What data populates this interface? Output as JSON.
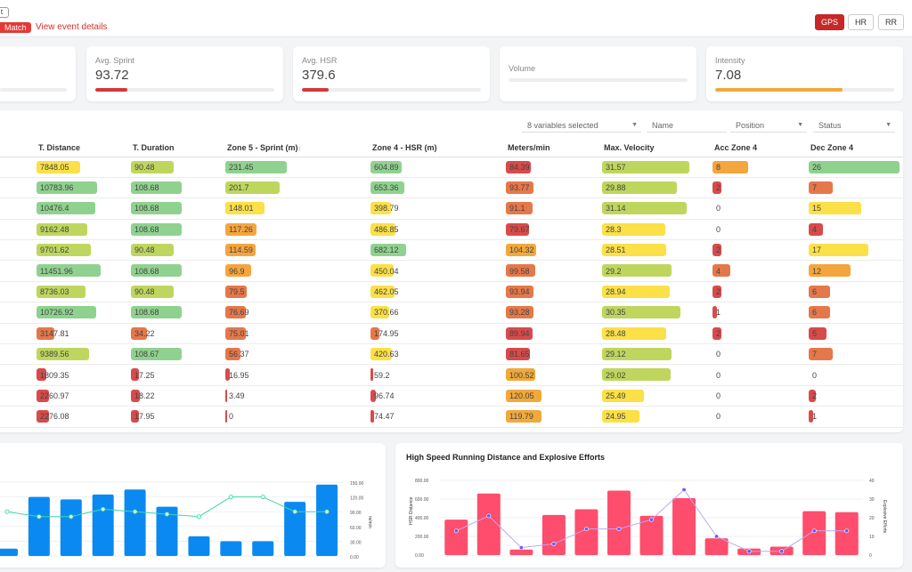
{
  "header": {
    "back_label": "t",
    "match_badge": "Match",
    "event_link": "View event details",
    "modes": [
      {
        "label": "GPS",
        "active": true
      },
      {
        "label": "HR",
        "active": false
      },
      {
        "label": "RR",
        "active": false
      }
    ]
  },
  "stats": [
    {
      "label": "",
      "value": "",
      "fill": 0.0,
      "color": "#d13a3a"
    },
    {
      "label": "Avg. Sprint",
      "value": "93.72",
      "fill": 0.18,
      "color": "#d13a3a"
    },
    {
      "label": "Avg. HSR",
      "value": "379.6",
      "fill": 0.15,
      "color": "#d13a3a"
    },
    {
      "label": "Volume",
      "value": "",
      "fill": 0.0,
      "color": "#d13a3a"
    },
    {
      "label": "Intensity",
      "value": "7.08",
      "fill": 0.71,
      "color": "#f0a93b"
    }
  ],
  "filters": {
    "variables": "8 variables selected",
    "name_placeholder": "Name",
    "position_placeholder": "Position",
    "status_placeholder": "Status"
  },
  "table": {
    "columns": [
      "",
      "T. Distance",
      "T. Duration",
      "Zone 5 - Sprint (m)",
      "Zone 4 - HSR (m)",
      "Meters/min",
      "Max. Velocity",
      "Acc Zone 4",
      "Dec Zone 4"
    ],
    "rows": [
      [
        "7848.05",
        "90.48",
        "231.45",
        "604.89",
        "84.39",
        "31.57",
        "8",
        "26"
      ],
      [
        "10783.96",
        "108.68",
        "201.7",
        "653.36",
        "93.77",
        "29.88",
        "2",
        "7"
      ],
      [
        "10476.4",
        "108.68",
        "148.01",
        "398.79",
        "91.1",
        "31.14",
        "0",
        "15"
      ],
      [
        "9162.48",
        "108.68",
        "117.26",
        "486.85",
        "79.67",
        "28.3",
        "0",
        "4"
      ],
      [
        "9701.62",
        "90.48",
        "114.59",
        "682.12",
        "104.32",
        "28.51",
        "2",
        "17"
      ],
      [
        "11451.96",
        "108.68",
        "96.9",
        "450.04",
        "99.58",
        "29.2",
        "4",
        "12"
      ],
      [
        "8736.03",
        "90.48",
        "79.5",
        "462.05",
        "93.94",
        "28.94",
        "2",
        "6"
      ],
      [
        "10726.92",
        "108.68",
        "76.69",
        "370.66",
        "93.28",
        "30.35",
        "1",
        "6"
      ],
      [
        "3147.81",
        "34.22",
        "75.01",
        "174.95",
        "89.94",
        "28.48",
        "2",
        "5"
      ],
      [
        "9389.56",
        "108.67",
        "56.37",
        "420.63",
        "81.65",
        "29.12",
        "0",
        "7"
      ],
      [
        "1809.35",
        "17.25",
        "16.95",
        "59.2",
        "100.52",
        "29.02",
        "0",
        "0"
      ],
      [
        "2260.97",
        "18.22",
        "3.49",
        "96.74",
        "120.05",
        "25.49",
        "0",
        "2"
      ],
      [
        "2276.08",
        "17.95",
        "0",
        "74.47",
        "119.79",
        "24.95",
        "0",
        "1"
      ]
    ]
  },
  "chart_left": {
    "type": "bar",
    "title": "",
    "values": [
      15,
      120,
      115,
      125,
      135,
      100,
      40,
      30,
      30,
      110,
      145
    ],
    "line": [
      90,
      80,
      80,
      95,
      90,
      85,
      80,
      120,
      120,
      90,
      90
    ],
    "ylim": [
      0,
      150
    ],
    "right_ticks": [
      "150.00",
      "120.00",
      "90.00",
      "60.00",
      "30.00",
      "0.00"
    ],
    "right_label": "m/min",
    "bar_color": "#0a8af0",
    "line_color": "#41d7a7"
  },
  "chart_data": {
    "type": "bar",
    "title": "High Speed Running Distance and Explosive Efforts",
    "ylabel": "HSR Distance",
    "y2label": "Explosive Efforts",
    "ylim": [
      0,
      800
    ],
    "y2lim": [
      0,
      40
    ],
    "left_ticks": [
      "800.00",
      "600.00",
      "400.00",
      "200.00",
      "0.00"
    ],
    "right_ticks": [
      "40",
      "30",
      "20",
      "10",
      "0"
    ],
    "values": [
      380,
      660,
      60,
      430,
      490,
      690,
      420,
      610,
      180,
      70,
      90,
      470,
      460
    ],
    "points": [
      13,
      21,
      4,
      6,
      14,
      14,
      19,
      35,
      10,
      2,
      2,
      13,
      13
    ],
    "bar_color": "#ff4d6d",
    "line_color": "#b9a9f0"
  }
}
